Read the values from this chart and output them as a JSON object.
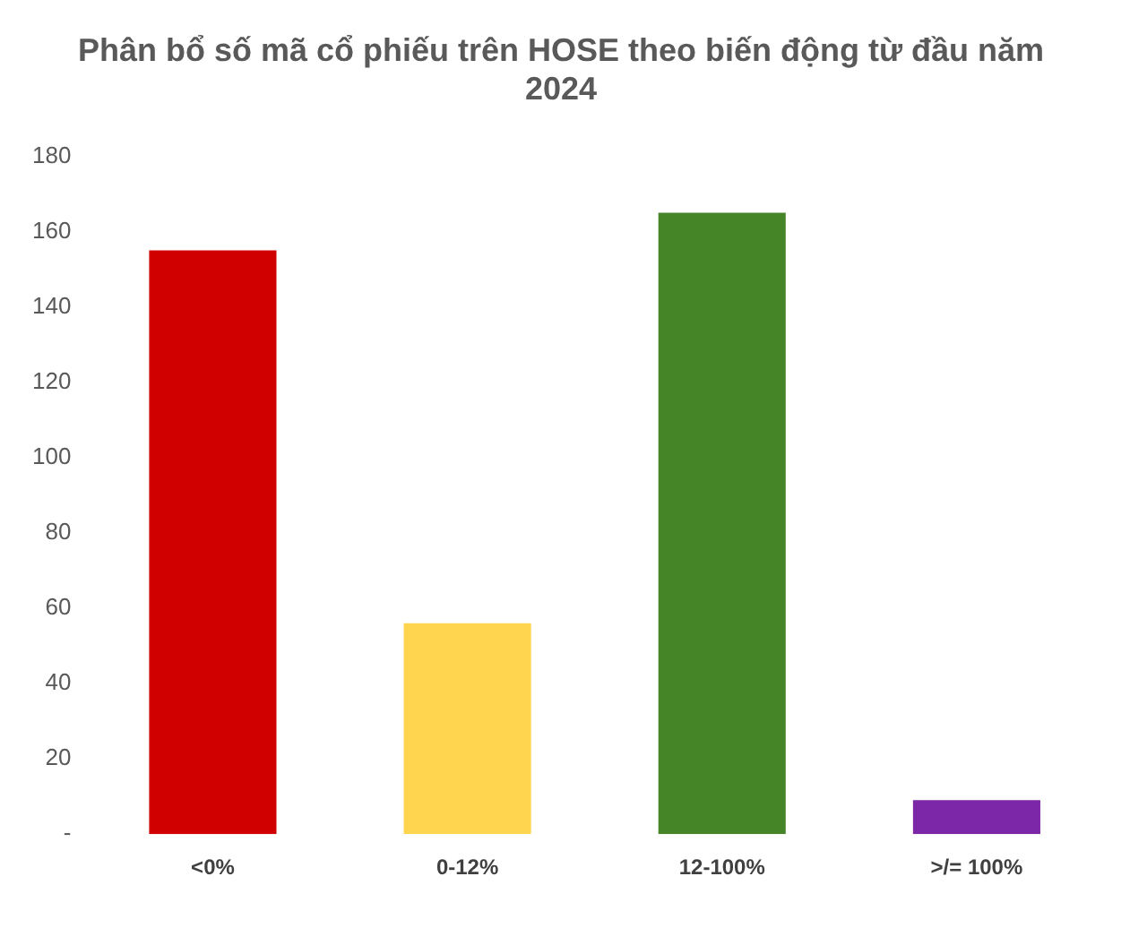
{
  "chart_data": {
    "type": "bar",
    "title": "Phân bổ số mã cổ phiếu trên HOSE theo biến động từ đầu năm 2024",
    "categories": [
      "<0%",
      "0-12%",
      "12-100%",
      ">/= 100%"
    ],
    "values": [
      155,
      56,
      165,
      9
    ],
    "colors": [
      "#d00000",
      "#ffd54f",
      "#468428",
      "#7b27a8"
    ],
    "ylim": [
      0,
      180
    ],
    "yticks": [
      {
        "value": 0,
        "label": "-"
      },
      20,
      40,
      60,
      80,
      100,
      120,
      140,
      160,
      180
    ],
    "grid": false
  }
}
